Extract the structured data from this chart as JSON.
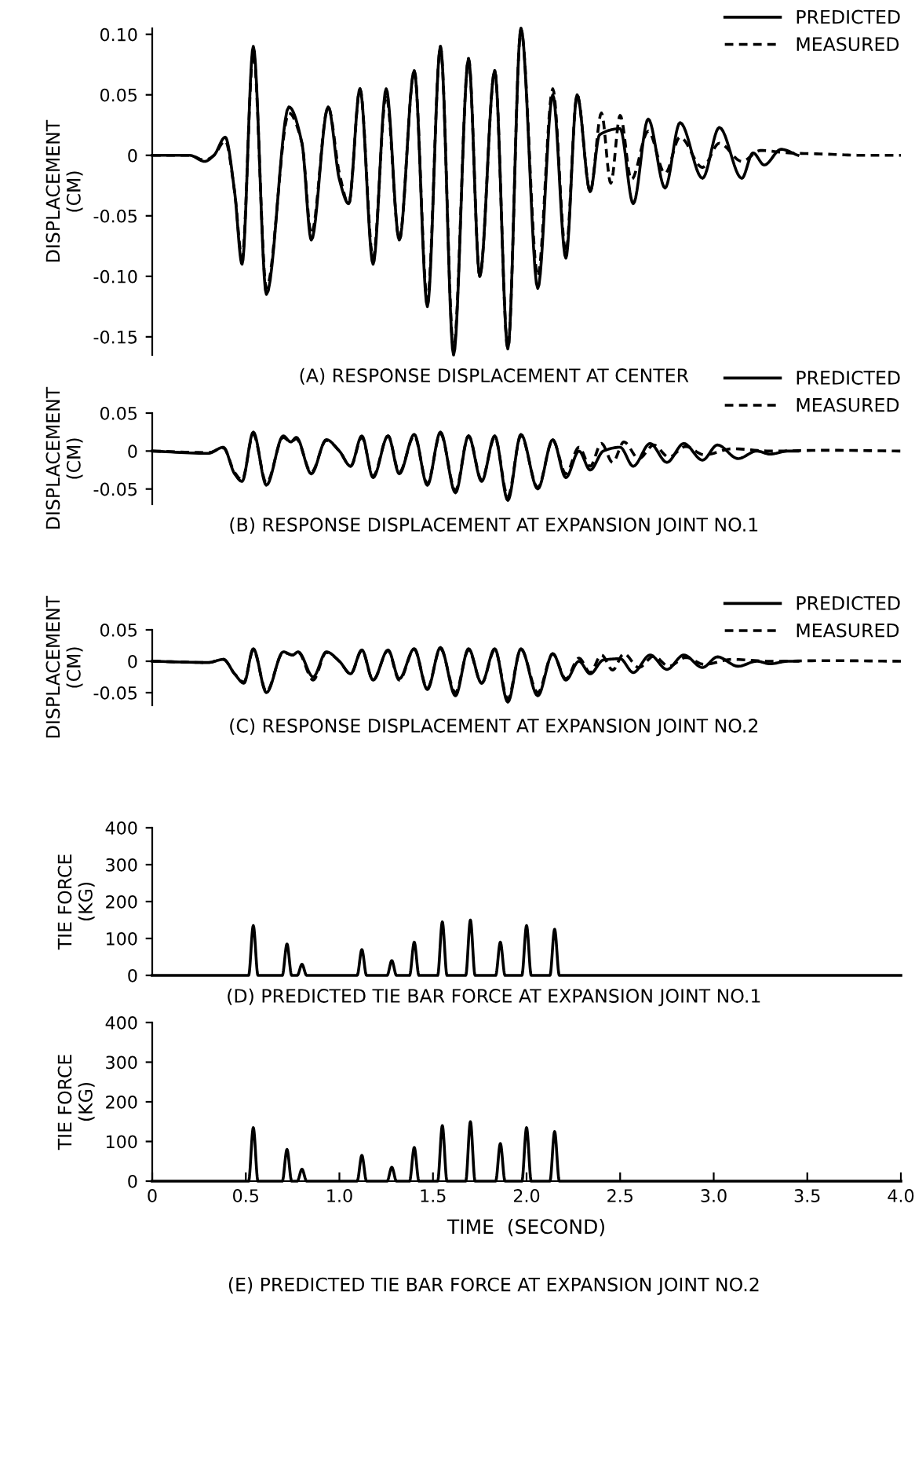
{
  "chart_data": [
    {
      "type": "line",
      "title": "(A) RESPONSE DISPLACEMENT AT CENTER",
      "ylabel": "DISPLACEMENT\n(CM)",
      "xlim": [
        0,
        4.0
      ],
      "ylim": [
        -0.165,
        0.105
      ],
      "yticks": [
        {
          "value": 0.1,
          "label": "0.10"
        },
        0.05,
        0,
        -0.05,
        {
          "value": -0.1,
          "label": "-0.10"
        },
        -0.15
      ],
      "tick_labels": "y",
      "legend": "top right",
      "series": [
        {
          "name": "PREDICTED",
          "color": "#000000",
          "line_style": "solid",
          "x": [
            0,
            0.2,
            0.28,
            0.33,
            0.39,
            0.44,
            0.48,
            0.54,
            0.61,
            0.73,
            0.8,
            0.85,
            0.94,
            1.0,
            1.05,
            1.11,
            1.18,
            1.25,
            1.32,
            1.4,
            1.47,
            1.54,
            1.61,
            1.69,
            1.75,
            1.83,
            1.9,
            1.97,
            2.06,
            2.14,
            2.21,
            2.27,
            2.34,
            2.39,
            2.5,
            2.57,
            2.65,
            2.74,
            2.82,
            2.94,
            3.03,
            3.15,
            3.21,
            3.27,
            3.36,
            3.45
          ],
          "values": [
            0,
            0,
            -0.005,
            0,
            0.015,
            -0.03,
            -0.09,
            0.09,
            -0.115,
            0.04,
            0.01,
            -0.07,
            0.04,
            -0.02,
            -0.04,
            0.055,
            -0.09,
            0.055,
            -0.07,
            0.07,
            -0.125,
            0.09,
            -0.165,
            0.08,
            -0.1,
            0.07,
            -0.16,
            0.105,
            -0.11,
            0.05,
            -0.085,
            0.05,
            -0.03,
            0.017,
            0.022,
            -0.04,
            0.03,
            -0.027,
            0.027,
            -0.019,
            0.023,
            -0.019,
            0.002,
            -0.008,
            0.005,
            0
          ]
        },
        {
          "name": "MEASURED",
          "color": "#000000",
          "line_style": "dashed",
          "x": [
            0,
            0.2,
            0.28,
            0.33,
            0.39,
            0.44,
            0.48,
            0.54,
            0.61,
            0.73,
            0.8,
            0.85,
            0.94,
            1.0,
            1.05,
            1.11,
            1.18,
            1.25,
            1.32,
            1.4,
            1.47,
            1.54,
            1.61,
            1.69,
            1.75,
            1.83,
            1.9,
            1.97,
            2.06,
            2.14,
            2.21,
            2.27,
            2.34,
            2.4,
            2.45,
            2.5,
            2.56,
            2.65,
            2.74,
            2.82,
            2.94,
            3.03,
            3.15,
            3.25,
            3.4,
            3.6,
            3.8,
            4.0
          ],
          "values": [
            0,
            0,
            -0.004,
            0,
            0.012,
            -0.03,
            -0.085,
            0.085,
            -0.11,
            0.035,
            0.01,
            -0.065,
            0.04,
            -0.015,
            -0.04,
            0.055,
            -0.085,
            0.05,
            -0.07,
            0.07,
            -0.12,
            0.09,
            -0.16,
            0.08,
            -0.1,
            0.07,
            -0.16,
            0.105,
            -0.1,
            0.055,
            -0.08,
            0.05,
            -0.03,
            0.035,
            -0.023,
            0.033,
            -0.02,
            0.02,
            -0.015,
            0.015,
            -0.01,
            0.01,
            -0.005,
            0.004,
            0.002,
            0.001,
            0,
            0
          ]
        }
      ]
    },
    {
      "type": "line",
      "title": "(B) RESPONSE DISPLACEMENT AT EXPANSION JOINT NO.1",
      "ylabel": "DISPLACEMENT\n(CM)",
      "xlim": [
        0,
        4.0
      ],
      "ylim": [
        -0.07,
        0.05
      ],
      "yticks": [
        0.05,
        0,
        -0.05
      ],
      "tick_labels": "y",
      "legend": "top right",
      "series": [
        {
          "name": "PREDICTED",
          "color": "#000000",
          "line_style": "solid",
          "x": [
            0,
            0.3,
            0.38,
            0.44,
            0.48,
            0.54,
            0.61,
            0.7,
            0.74,
            0.77,
            0.85,
            0.93,
            1.0,
            1.06,
            1.12,
            1.18,
            1.26,
            1.32,
            1.4,
            1.47,
            1.54,
            1.62,
            1.69,
            1.76,
            1.83,
            1.9,
            1.97,
            2.06,
            2.14,
            2.21,
            2.28,
            2.34,
            2.41,
            2.5,
            2.57,
            2.66,
            2.75,
            2.84,
            2.94,
            3.02,
            3.13,
            3.23,
            3.3,
            3.4,
            3.45
          ],
          "values": [
            0,
            -0.003,
            0.005,
            -0.03,
            -0.04,
            0.025,
            -0.045,
            0.02,
            0.012,
            0.018,
            -0.03,
            0.015,
            0.0,
            -0.02,
            0.02,
            -0.035,
            0.02,
            -0.03,
            0.022,
            -0.045,
            0.025,
            -0.055,
            0.02,
            -0.04,
            0.02,
            -0.065,
            0.022,
            -0.05,
            0.015,
            -0.035,
            0.0,
            -0.025,
            0.0,
            0.005,
            -0.02,
            0.01,
            -0.015,
            0.01,
            -0.012,
            0.008,
            -0.01,
            0.0,
            -0.004,
            0.0,
            0
          ]
        },
        {
          "name": "MEASURED",
          "color": "#000000",
          "line_style": "dashed",
          "x": [
            0,
            0.3,
            0.38,
            0.44,
            0.48,
            0.54,
            0.61,
            0.7,
            0.74,
            0.77,
            0.85,
            0.93,
            1.0,
            1.06,
            1.12,
            1.18,
            1.26,
            1.32,
            1.4,
            1.47,
            1.54,
            1.62,
            1.69,
            1.76,
            1.83,
            1.9,
            1.97,
            2.06,
            2.14,
            2.21,
            2.28,
            2.34,
            2.4,
            2.46,
            2.52,
            2.6,
            2.68,
            2.76,
            2.85,
            2.95,
            3.1,
            3.3,
            3.6,
            4.0
          ],
          "values": [
            0,
            -0.002,
            0.004,
            -0.028,
            -0.038,
            0.022,
            -0.042,
            0.018,
            0.012,
            0.016,
            -0.028,
            0.014,
            0.0,
            -0.02,
            0.018,
            -0.033,
            0.02,
            -0.028,
            0.02,
            -0.043,
            0.023,
            -0.052,
            0.02,
            -0.038,
            0.018,
            -0.06,
            0.02,
            -0.048,
            0.014,
            -0.03,
            0.005,
            -0.02,
            0.01,
            -0.015,
            0.012,
            -0.01,
            0.008,
            -0.008,
            0.006,
            -0.005,
            0.003,
            0,
            0.001,
            0
          ]
        }
      ]
    },
    {
      "type": "line",
      "title": "(C) RESPONSE DISPLACEMENT AT EXPANSION JOINT NO.2",
      "ylabel": "DISPLACEMENT\n(CM)",
      "xlim": [
        0,
        4.0
      ],
      "ylim": [
        -0.07,
        0.05
      ],
      "yticks": [
        0.05,
        0,
        -0.05
      ],
      "tick_labels": "y",
      "legend": "top right",
      "series": [
        {
          "name": "PREDICTED",
          "color": "#000000",
          "line_style": "solid",
          "x": [
            0,
            0.3,
            0.38,
            0.44,
            0.49,
            0.54,
            0.61,
            0.7,
            0.75,
            0.78,
            0.86,
            0.93,
            1.0,
            1.06,
            1.12,
            1.18,
            1.26,
            1.32,
            1.4,
            1.47,
            1.54,
            1.62,
            1.69,
            1.76,
            1.83,
            1.9,
            1.97,
            2.06,
            2.14,
            2.21,
            2.28,
            2.34,
            2.41,
            2.5,
            2.57,
            2.66,
            2.75,
            2.84,
            2.94,
            3.02,
            3.13,
            3.23,
            3.3,
            3.4,
            3.45
          ],
          "values": [
            0,
            -0.002,
            0.003,
            -0.02,
            -0.035,
            0.02,
            -0.05,
            0.015,
            0.01,
            0.015,
            -0.025,
            0.015,
            0.0,
            -0.02,
            0.018,
            -0.03,
            0.018,
            -0.028,
            0.02,
            -0.045,
            0.022,
            -0.055,
            0.02,
            -0.035,
            0.02,
            -0.065,
            0.02,
            -0.055,
            0.012,
            -0.03,
            0.0,
            -0.02,
            0.002,
            0.004,
            -0.018,
            0.01,
            -0.013,
            0.01,
            -0.01,
            0.007,
            -0.008,
            0.0,
            -0.004,
            0.0,
            0
          ]
        },
        {
          "name": "MEASURED",
          "color": "#000000",
          "line_style": "dashed",
          "x": [
            0,
            0.3,
            0.38,
            0.44,
            0.49,
            0.54,
            0.61,
            0.7,
            0.75,
            0.78,
            0.86,
            0.93,
            1.0,
            1.06,
            1.12,
            1.18,
            1.26,
            1.32,
            1.4,
            1.47,
            1.54,
            1.62,
            1.69,
            1.76,
            1.83,
            1.9,
            1.97,
            2.06,
            2.14,
            2.21,
            2.28,
            2.34,
            2.4,
            2.46,
            2.52,
            2.6,
            2.68,
            2.76,
            2.85,
            2.95,
            3.1,
            3.3,
            3.6,
            4.0
          ],
          "values": [
            0,
            -0.002,
            0.003,
            -0.02,
            -0.033,
            0.018,
            -0.048,
            0.014,
            0.01,
            0.014,
            -0.03,
            0.014,
            0.0,
            -0.02,
            0.017,
            -0.03,
            0.017,
            -0.03,
            0.019,
            -0.043,
            0.02,
            -0.05,
            0.018,
            -0.035,
            0.018,
            -0.06,
            0.019,
            -0.05,
            0.012,
            -0.028,
            0.005,
            -0.018,
            0.01,
            -0.014,
            0.012,
            -0.01,
            0.008,
            -0.008,
            0.006,
            -0.005,
            0.003,
            0,
            0.001,
            0
          ]
        }
      ]
    },
    {
      "type": "line",
      "title": "(D) PREDICTED TIE BAR FORCE AT EXPANSION JOINT NO.1",
      "ylabel": "TIE FORCE\n(KG)",
      "xlim": [
        0,
        4.0
      ],
      "ylim": [
        0,
        400
      ],
      "yticks": [
        0,
        100,
        200,
        300,
        400
      ],
      "tick_labels": "y",
      "series": [
        {
          "color": "#000000",
          "line_style": "solid",
          "x": [
            0,
            0.515,
            0.54,
            0.565,
            0.695,
            0.72,
            0.745,
            0.775,
            0.8,
            0.825,
            1.095,
            1.12,
            1.145,
            1.255,
            1.28,
            1.305,
            1.375,
            1.4,
            1.425,
            1.525,
            1.55,
            1.575,
            1.675,
            1.7,
            1.725,
            1.835,
            1.86,
            1.885,
            1.975,
            2.0,
            2.025,
            2.125,
            2.15,
            2.175,
            4.0
          ],
          "values": [
            0,
            0,
            135,
            0,
            0,
            85,
            0,
            0,
            30,
            0,
            0,
            70,
            0,
            0,
            40,
            0,
            0,
            90,
            0,
            0,
            145,
            0,
            0,
            150,
            0,
            0,
            90,
            0,
            0,
            135,
            0,
            0,
            125,
            0,
            0
          ]
        }
      ]
    },
    {
      "type": "line",
      "title": "(E) PREDICTED TIE BAR FORCE AT EXPANSION JOINT NO.2",
      "ylabel": "TIE FORCE\n(KG)",
      "xlabel": "TIME  (SECOND)",
      "xlim": [
        0,
        4.0
      ],
      "ylim": [
        0,
        400
      ],
      "yticks": [
        0,
        100,
        200,
        300,
        400
      ],
      "xticks": [
        0,
        0.5,
        {
          "value": 1.0,
          "label": "1.0"
        },
        1.5,
        {
          "value": 2.0,
          "label": "2.0"
        },
        2.5,
        {
          "value": 3.0,
          "label": "3.0"
        },
        3.5,
        {
          "value": 4.0,
          "label": "4.0"
        }
      ],
      "series": [
        {
          "color": "#000000",
          "line_style": "solid",
          "x": [
            0,
            0.515,
            0.54,
            0.565,
            0.695,
            0.72,
            0.745,
            0.775,
            0.8,
            0.825,
            1.095,
            1.12,
            1.145,
            1.255,
            1.28,
            1.305,
            1.375,
            1.4,
            1.425,
            1.525,
            1.55,
            1.575,
            1.675,
            1.7,
            1.725,
            1.835,
            1.86,
            1.885,
            1.975,
            2.0,
            2.025,
            2.125,
            2.15,
            2.175,
            4.0
          ],
          "values": [
            0,
            0,
            135,
            0,
            0,
            80,
            0,
            0,
            30,
            0,
            0,
            65,
            0,
            0,
            35,
            0,
            0,
            85,
            0,
            0,
            140,
            0,
            0,
            150,
            0,
            0,
            95,
            0,
            0,
            135,
            0,
            0,
            125,
            0,
            0
          ]
        }
      ]
    }
  ]
}
